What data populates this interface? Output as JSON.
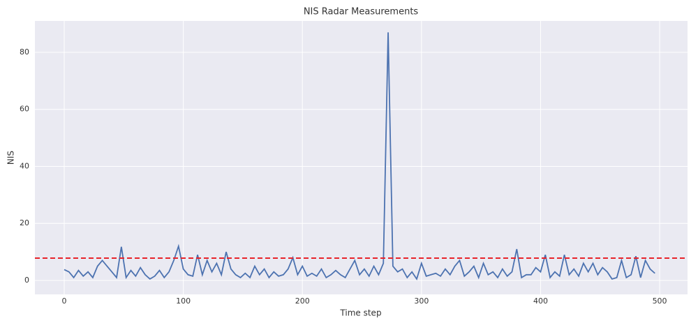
{
  "chart_data": {
    "type": "line",
    "title": "NIS Radar Measurements",
    "xlabel": "Time step",
    "ylabel": "NIS",
    "x": [
      0,
      4,
      8,
      12,
      16,
      20,
      24,
      28,
      32,
      36,
      40,
      44,
      48,
      52,
      56,
      60,
      64,
      68,
      72,
      76,
      80,
      84,
      88,
      92,
      96,
      100,
      104,
      108,
      112,
      116,
      120,
      124,
      128,
      132,
      136,
      140,
      144,
      148,
      152,
      156,
      160,
      164,
      168,
      172,
      176,
      180,
      184,
      188,
      192,
      196,
      200,
      204,
      208,
      212,
      216,
      220,
      224,
      228,
      232,
      236,
      240,
      244,
      248,
      252,
      256,
      260,
      264,
      268,
      272,
      276,
      280,
      284,
      288,
      292,
      296,
      300,
      304,
      308,
      312,
      316,
      320,
      324,
      328,
      332,
      336,
      340,
      344,
      348,
      352,
      356,
      360,
      364,
      368,
      372,
      376,
      380,
      384,
      388,
      392,
      396,
      400,
      404,
      408,
      412,
      416,
      420,
      424,
      428,
      432,
      436,
      440,
      444,
      448,
      452,
      456,
      460,
      464,
      468,
      472,
      476,
      480,
      484,
      488,
      492,
      496
    ],
    "series": [
      {
        "color": "#4c72b0",
        "values": [
          3.8,
          3,
          1,
          3.5,
          1.5,
          3,
          1,
          5,
          7,
          5,
          3,
          1,
          11.8,
          1,
          3.5,
          1.5,
          4.5,
          2,
          0.5,
          1.5,
          3.5,
          1,
          3,
          7,
          12,
          4,
          2,
          1.5,
          9,
          2,
          7,
          3,
          6,
          2,
          10,
          4,
          2,
          1,
          2.5,
          1,
          5,
          2,
          4,
          1,
          3,
          1.5,
          2,
          4,
          8,
          2,
          5,
          1.5,
          2.5,
          1.5,
          4,
          1,
          2,
          3.5,
          2,
          1,
          4,
          7,
          2,
          4,
          1.5,
          5,
          2,
          6,
          87,
          5,
          3,
          4,
          1,
          3,
          0.5,
          6,
          1.5,
          2,
          2.5,
          1.5,
          4,
          2,
          5,
          7,
          1.5,
          3,
          5,
          1,
          6,
          2,
          3,
          1,
          4,
          1.5,
          3,
          11,
          1,
          2,
          2,
          4.5,
          3,
          9,
          1,
          3,
          1.5,
          9,
          2,
          4,
          1.5,
          6,
          3,
          6,
          2,
          4.5,
          3,
          0.5,
          1,
          7,
          1,
          2,
          8.5,
          1,
          7,
          4,
          2.5
        ]
      }
    ],
    "reference_line": {
      "value": 7.815,
      "color": "#e8232a"
    },
    "xlim": [
      -24.6,
      523.4
    ],
    "xticks": [
      0,
      100,
      200,
      300,
      400,
      500
    ],
    "ylim": [
      -4.9,
      91
    ],
    "yticks": [
      0,
      20,
      40,
      60,
      80
    ],
    "grid": true
  }
}
